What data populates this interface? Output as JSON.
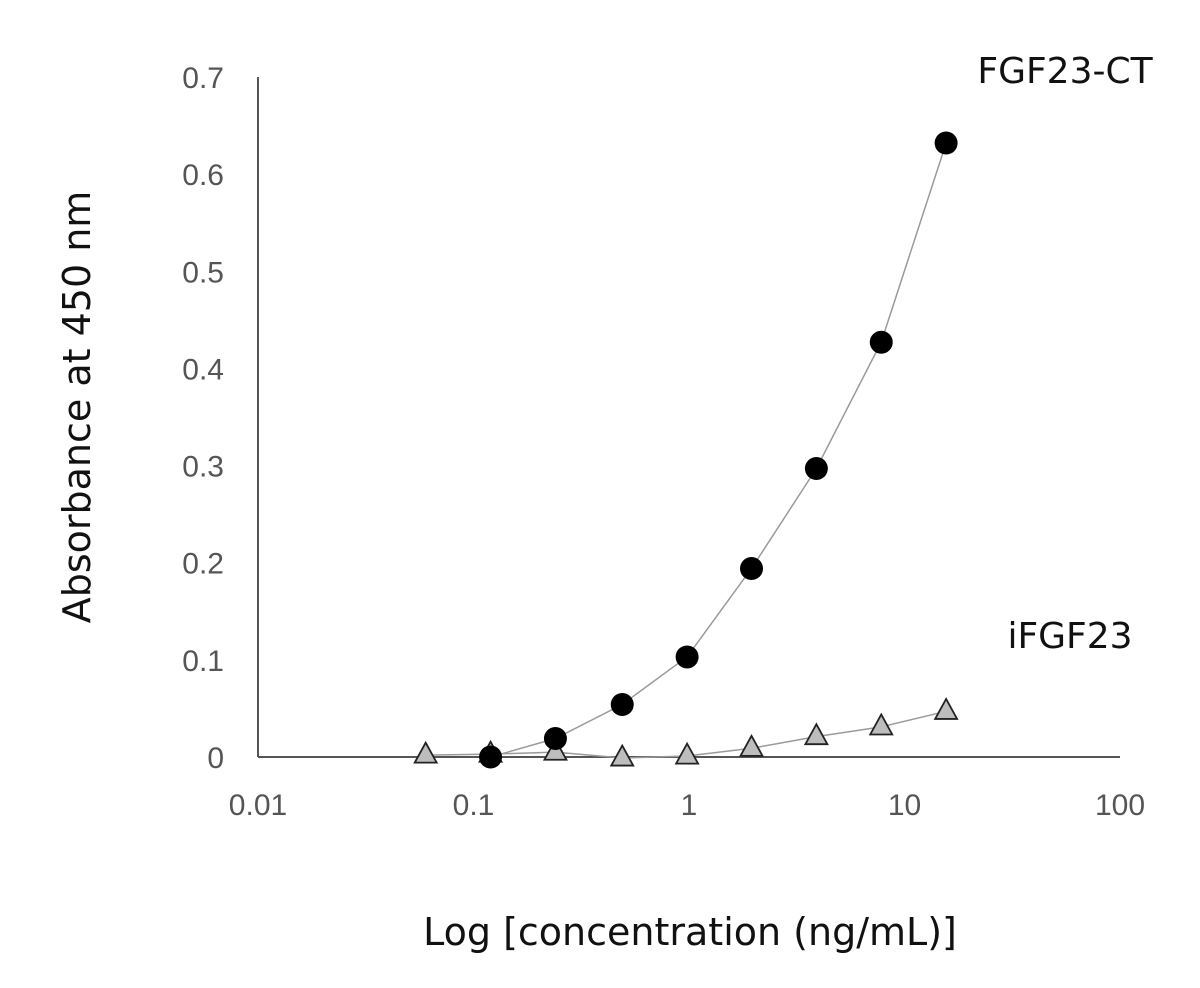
{
  "chart_data": {
    "type": "scatter",
    "xscale": "log",
    "xlabel": "Log [concentration (ng/mL)]",
    "ylabel": "Absorbance at 450 nm",
    "xlim": [
      0.01,
      100
    ],
    "ylim": [
      0,
      0.7
    ],
    "x_ticks": [
      "0.01",
      "0.1",
      "1",
      "10",
      "100"
    ],
    "y_ticks": [
      "0",
      "0.1",
      "0.2",
      "0.3",
      "0.4",
      "0.5",
      "0.6",
      "0.7"
    ],
    "grid": false,
    "legend": "none",
    "series": [
      {
        "name": "FGF23-CT",
        "marker": "filled-circle",
        "color": "#000000",
        "x": [
          0.12,
          0.24,
          0.49,
          0.98,
          1.95,
          3.9,
          7.8,
          15.6
        ],
        "y": [
          0.0,
          0.019,
          0.054,
          0.103,
          0.194,
          0.297,
          0.427,
          0.632
        ]
      },
      {
        "name": "iFGF23",
        "marker": "open-triangle",
        "color": "#bdbdbd",
        "x": [
          0.06,
          0.12,
          0.24,
          0.49,
          0.98,
          1.95,
          3.9,
          7.8,
          15.6
        ],
        "y": [
          0.002,
          0.003,
          0.005,
          -0.001,
          0.001,
          0.009,
          0.021,
          0.031,
          0.047
        ]
      }
    ]
  }
}
